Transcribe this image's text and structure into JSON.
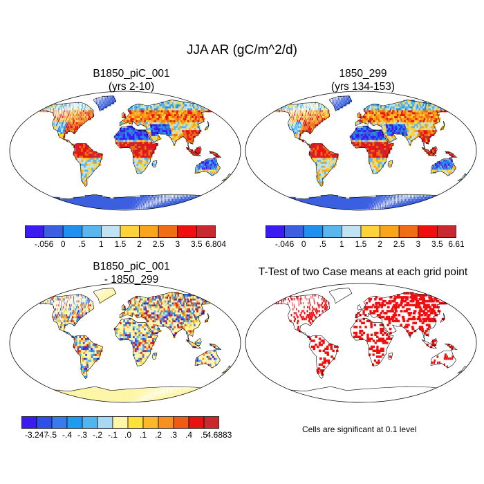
{
  "main_title": "JJA AR (gC/m^2/d)",
  "panels": [
    {
      "title_line1": "B1850_piC_001",
      "title_line2": "(yrs 2-10)",
      "type": "field",
      "colorbar": {
        "labels": [
          "-.056",
          "0",
          ".5",
          "1",
          "1.5",
          "2",
          "2.5",
          "3",
          "3.5",
          "6.804"
        ],
        "colors": [
          "#3a1cf0",
          "#3b5fe0",
          "#1f90f0",
          "#5ab6ec",
          "#bfe3f3",
          "#fdd33a",
          "#f9a51c",
          "#f06d16",
          "#ee1010",
          "#c8282e"
        ]
      }
    },
    {
      "title_line1": "1850_299",
      "title_line2": "(yrs 134-153)",
      "type": "field",
      "colorbar": {
        "labels": [
          "-.046",
          "0",
          ".5",
          "1",
          "1.5",
          "2",
          "2.5",
          "3",
          "3.5",
          "6.61"
        ],
        "colors": [
          "#3a1cf0",
          "#3b5fe0",
          "#1f90f0",
          "#5ab6ec",
          "#bfe3f3",
          "#fdd33a",
          "#f9a51c",
          "#f06d16",
          "#ee1010",
          "#c8282e"
        ]
      }
    },
    {
      "title_line1": "B1850_piC_001",
      "title_line2": "- 1850_299",
      "type": "difference",
      "colorbar": {
        "labels": [
          "-3.247",
          "-.5",
          "-.4",
          "-.3",
          "-.2",
          "-.1",
          ".0",
          ".1",
          ".2",
          ".3",
          ".4",
          ".5",
          "4.6883"
        ],
        "colors": [
          "#3a1cf0",
          "#2f4fe8",
          "#3a7af0",
          "#1e9cf0",
          "#52b6ee",
          "#a8d8f2",
          "#fdf6a8",
          "#fde03a",
          "#fbb82a",
          "#f7901e",
          "#f05a14",
          "#e81212",
          "#c8282e"
        ]
      }
    },
    {
      "title_line1": "T-Test of two Case means at each grid point",
      "title_line2": "",
      "type": "significance",
      "note": "Cells are significant at 0.1 level",
      "mark_color": "#ee1010"
    }
  ]
}
